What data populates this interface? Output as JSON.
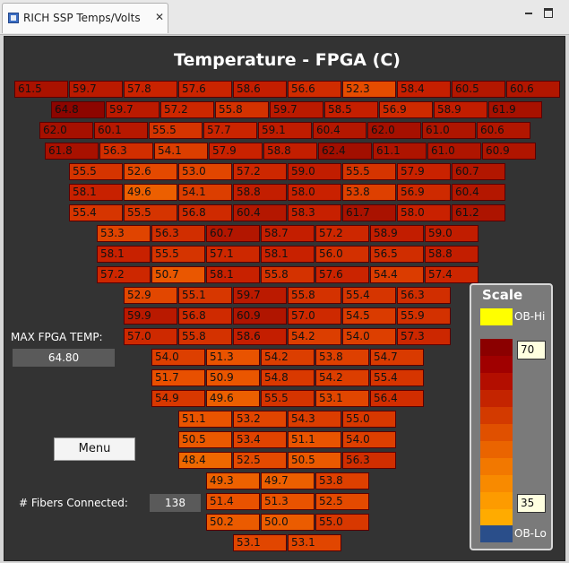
{
  "tab": {
    "title": "RICH SSP Temps/Volts",
    "close_icon": "close-icon",
    "minimize_icon": "minimize-icon",
    "maximize_icon": "maximize-icon"
  },
  "title": "Temperature - FPGA (C)",
  "max_label": "MAX FPGA TEMP:",
  "max_value": "64.80",
  "menu_label": "Menu",
  "fibers_label": "# Fibers Connected:",
  "fibers_value": "138",
  "scale": {
    "title": "Scale",
    "ob_hi": "OB-Hi",
    "ob_lo": "OB-Lo",
    "max": "70",
    "min": "35",
    "colors": {
      "ob_hi": "#ffff00",
      "ob_lo": "#2a4e8a"
    }
  },
  "rows": [
    [
      "61.5",
      "59.7",
      "57.8",
      "57.6",
      "58.6",
      "56.6",
      "52.3",
      "58.4",
      "60.5",
      "60.6"
    ],
    [
      "64.8",
      "59.7",
      "57.2",
      "55.8",
      "59.7",
      "58.5",
      "56.9",
      "58.9",
      "61.9"
    ],
    [
      "62.0",
      "60.1",
      "55.5",
      "57.7",
      "59.1",
      "60.4",
      "62.0",
      "61.0",
      "60.6"
    ],
    [
      "61.8",
      "56.3",
      "54.1",
      "57.9",
      "58.8",
      "62.4",
      "61.1",
      "61.0",
      "60.9"
    ],
    [
      "55.5",
      "52.6",
      "53.0",
      "57.2",
      "59.0",
      "55.5",
      "57.9",
      "60.7"
    ],
    [
      "58.1",
      "49.6",
      "54.1",
      "58.8",
      "58.0",
      "53.8",
      "56.9",
      "60.4"
    ],
    [
      "55.4",
      "55.5",
      "56.8",
      "60.4",
      "58.3",
      "61.7",
      "58.0",
      "61.2"
    ],
    [
      "53.3",
      "56.3",
      "60.7",
      "58.7",
      "57.2",
      "58.9",
      "59.0"
    ],
    [
      "58.1",
      "55.5",
      "57.1",
      "58.1",
      "56.0",
      "56.5",
      "58.8"
    ],
    [
      "57.2",
      "50.7",
      "58.1",
      "55.8",
      "57.6",
      "54.4",
      "57.4"
    ],
    [
      "52.9",
      "55.1",
      "59.7",
      "55.8",
      "55.4",
      "56.3"
    ],
    [
      "59.9",
      "56.8",
      "60.9",
      "57.0",
      "54.5",
      "55.9"
    ],
    [
      "57.0",
      "55.8",
      "58.6",
      "54.2",
      "54.0",
      "57.3"
    ],
    [
      "54.0",
      "51.3",
      "54.2",
      "53.8",
      "54.7"
    ],
    [
      "51.7",
      "50.9",
      "54.8",
      "54.2",
      "55.4"
    ],
    [
      "54.9",
      "49.6",
      "55.5",
      "53.1",
      "56.4"
    ],
    [
      "51.1",
      "53.2",
      "54.3",
      "55.0"
    ],
    [
      "50.5",
      "53.4",
      "51.1",
      "54.0"
    ],
    [
      "48.4",
      "52.5",
      "50.5",
      "56.3"
    ],
    [
      "49.3",
      "49.7",
      "53.8"
    ],
    [
      "51.4",
      "51.3",
      "52.5"
    ],
    [
      "50.2",
      "50.0",
      "55.0"
    ],
    [
      "53.1",
      "53.1"
    ]
  ]
}
